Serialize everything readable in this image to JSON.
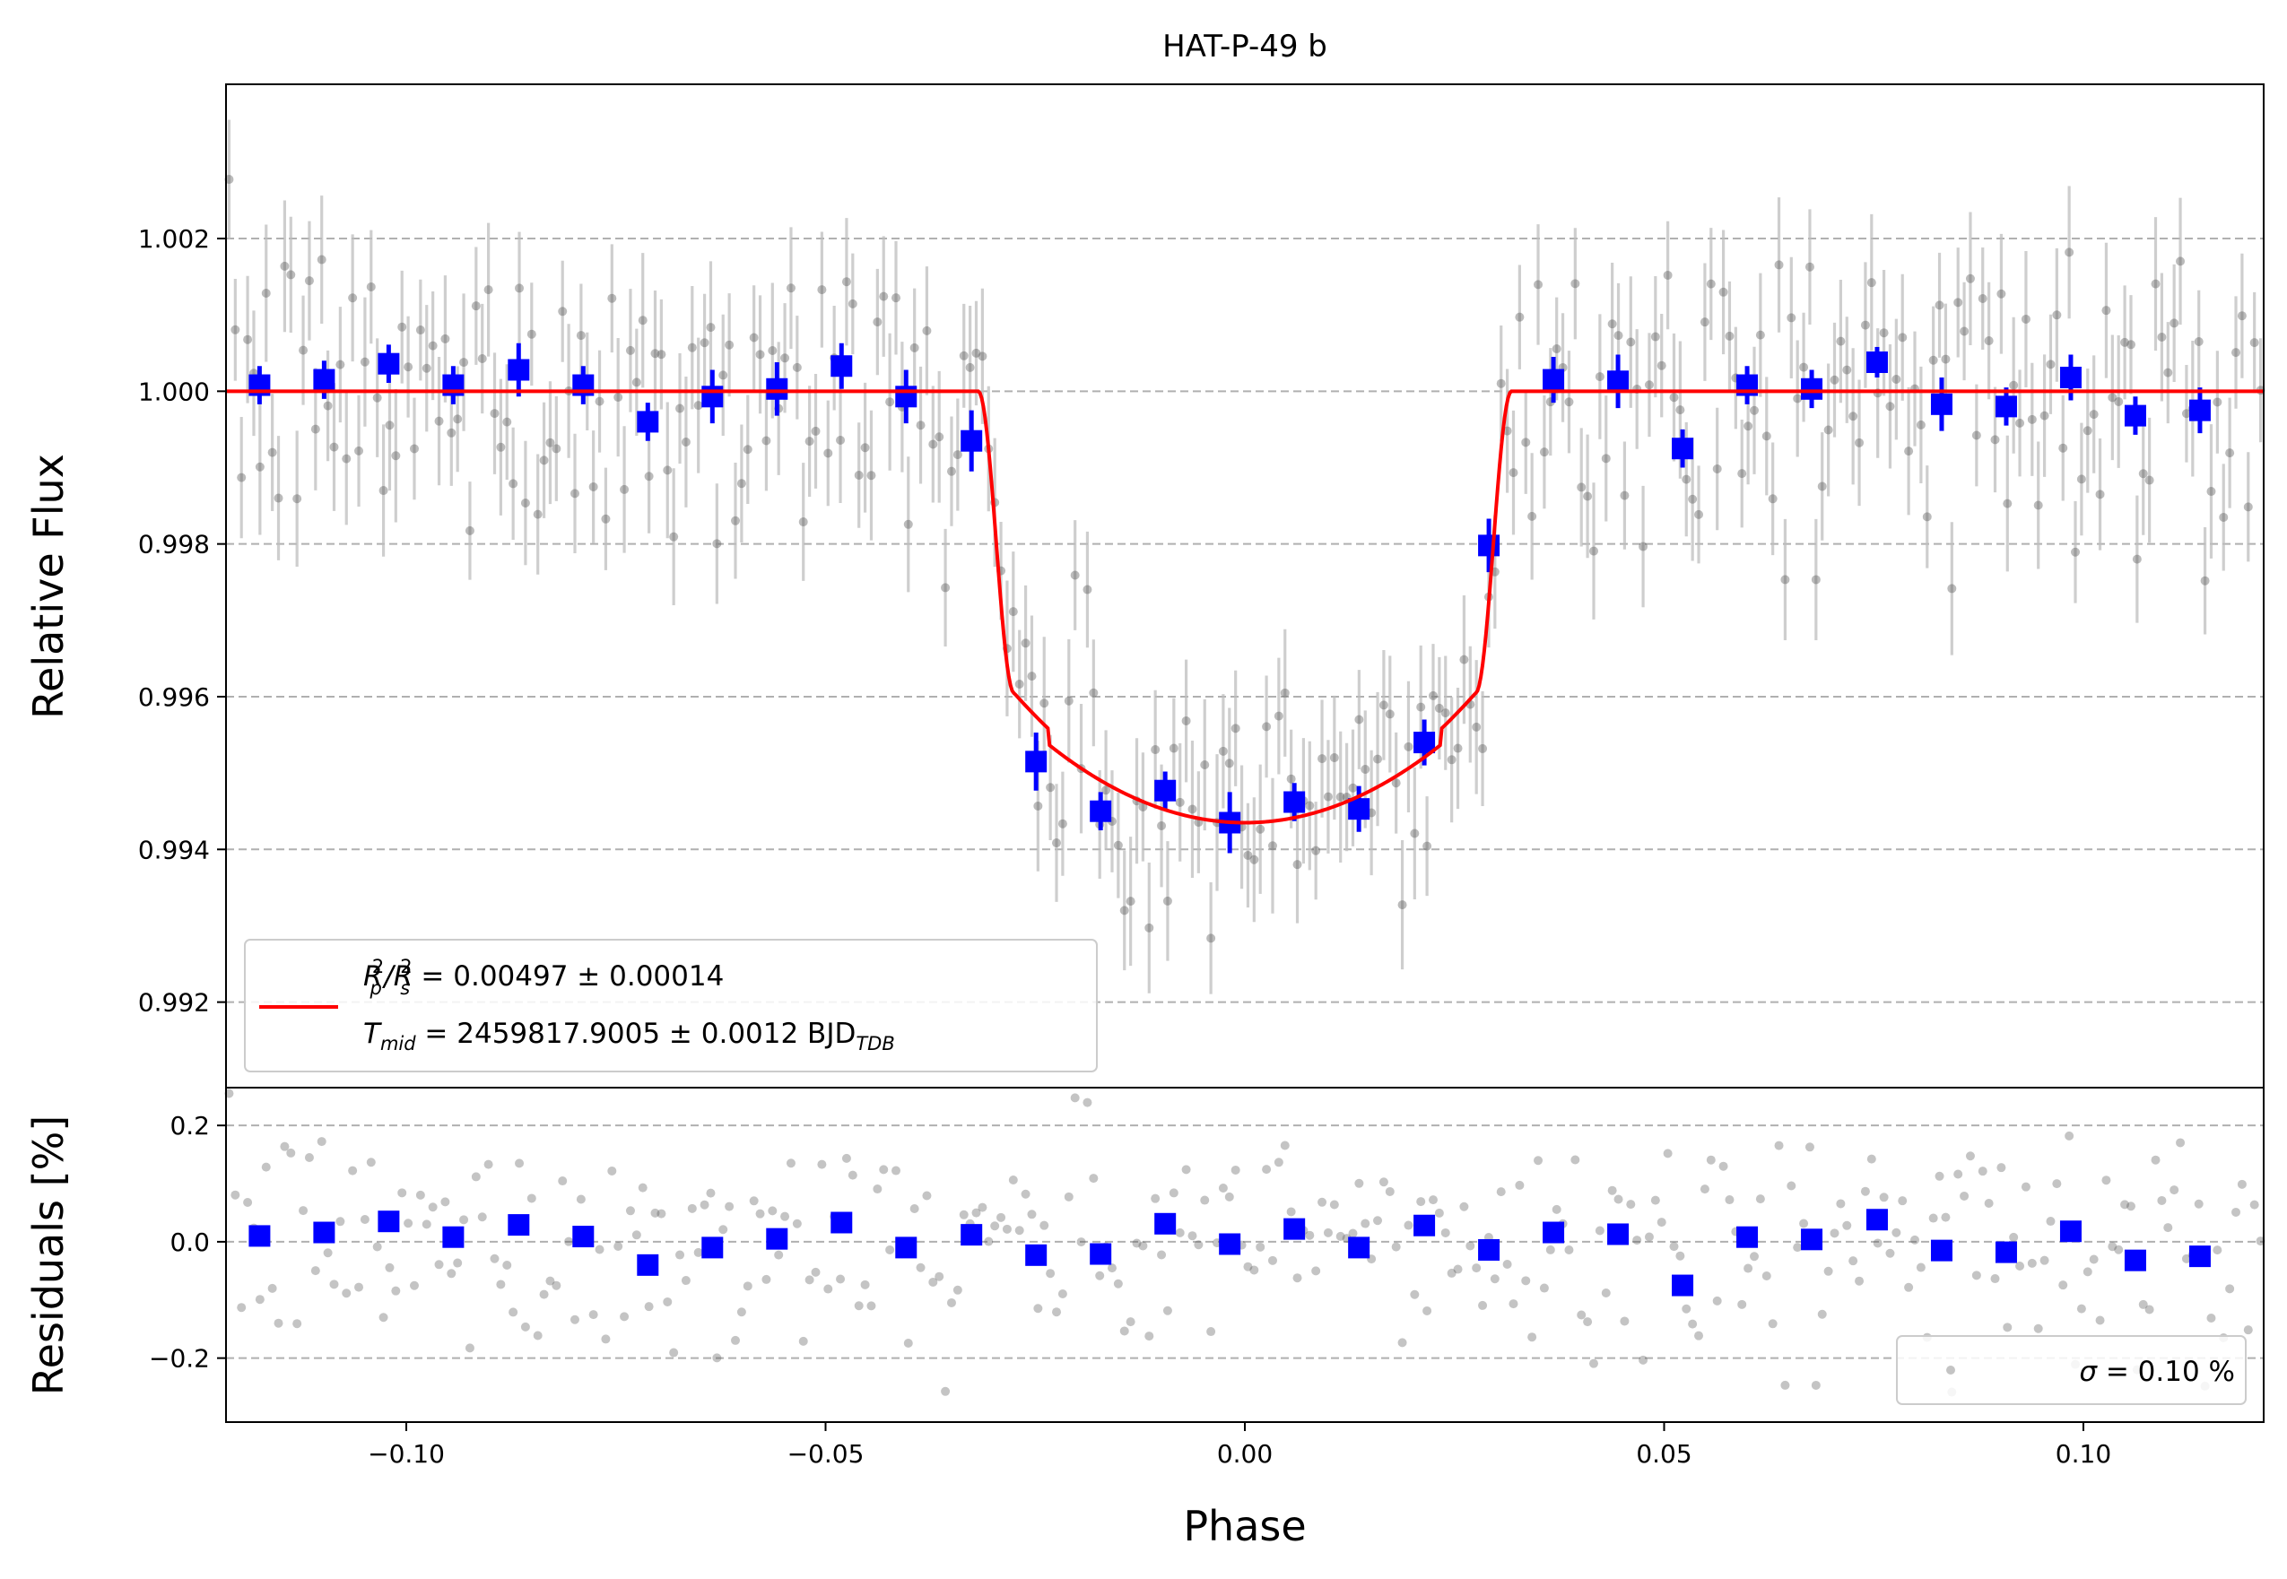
{
  "chart_data": [
    {
      "type": "scatter",
      "title": "HAT-P-49 b",
      "xlabel": "Phase",
      "ylabel": "Relative Flux",
      "xlim": [
        -0.1215,
        0.1215
      ],
      "ylim": [
        0.99088,
        1.00402
      ],
      "yticks": [
        0.992,
        0.994,
        0.996,
        0.998,
        1.0,
        1.002
      ],
      "ytick_labels": [
        "0.992",
        "0.994",
        "0.996",
        "0.998",
        "1.000",
        "1.002"
      ],
      "grid": "horizontal dashed",
      "legend": {
        "placement": "lower-left",
        "line1_parts": [
          "R",
          "p",
          "2",
          "/R",
          "s",
          "2",
          " = 0.00497 ± 0.00014"
        ],
        "line2_parts": [
          "T",
          "mid",
          " = 2459817.9005 ± 0.0012 BJD",
          "TDB"
        ]
      },
      "model_line": {
        "color": "#ff0000",
        "depth": 0.00565,
        "t_contact_1": -0.0318,
        "t_contact_2": -0.0275,
        "t_contact_3": 0.0275,
        "t_contact_4": 0.0318
      },
      "binned_series": {
        "color": "#0000ff",
        "x": [
          -0.1175,
          -0.1098,
          -0.1021,
          -0.0944,
          -0.0866,
          -0.0789,
          -0.0712,
          -0.0635,
          -0.0558,
          -0.0481,
          -0.0404,
          -0.0326,
          -0.0249,
          -0.0172,
          -0.0095,
          -0.0018,
          0.0059,
          0.0136,
          0.0214,
          0.0291,
          0.0368,
          0.0445,
          0.0522,
          0.0599,
          0.0676,
          0.0754,
          0.0831,
          0.0908,
          0.0985,
          0.1062,
          0.1139
        ],
        "y": [
          1.00008,
          1.00015,
          1.00036,
          1.00008,
          1.00028,
          1.00008,
          0.9996,
          0.99993,
          1.00003,
          1.00033,
          0.99993,
          0.99935,
          0.99515,
          0.9945,
          0.99477,
          0.99435,
          0.99462,
          0.99453,
          0.9954,
          0.99798,
          1.00015,
          1.00013,
          0.99925,
          1.00008,
          1.00003,
          1.00038,
          0.99983,
          0.9998,
          1.00018,
          0.99968,
          0.99975
        ],
        "err": [
          0.00025,
          0.00025,
          0.00025,
          0.00025,
          0.00035,
          0.00025,
          0.00025,
          0.00035,
          0.00035,
          0.0003,
          0.00035,
          0.0004,
          0.00038,
          0.00025,
          0.00025,
          0.0004,
          0.00025,
          0.0003,
          0.0003,
          0.00035,
          0.0003,
          0.00035,
          0.00025,
          0.00025,
          0.00025,
          0.0002,
          0.00035,
          0.00025,
          0.0003,
          0.00025,
          0.0003
        ]
      },
      "raw_series": {
        "color": "#555555",
        "count": 330,
        "typical_error": 0.00075,
        "scatter_sigma": 0.001
      }
    },
    {
      "type": "scatter",
      "xlabel": "Phase",
      "ylabel": "Residuals [%]",
      "xlim": [
        -0.1215,
        0.1215
      ],
      "ylim": [
        -0.31,
        0.265
      ],
      "xticks": [
        -0.1,
        -0.05,
        0.0,
        0.05,
        0.1
      ],
      "xtick_labels": [
        "−0.10",
        "−0.05",
        "0.00",
        "0.05",
        "0.10"
      ],
      "yticks": [
        -0.2,
        0.0,
        0.2
      ],
      "ytick_labels": [
        "−0.2",
        "0.0",
        "0.2"
      ],
      "grid": "horizontal dashed",
      "legend": {
        "placement": "lower-right",
        "parts": [
          "σ",
          " = 0.10 %"
        ]
      },
      "binned_series": {
        "color": "#0000ff",
        "x": [
          -0.1175,
          -0.1098,
          -0.1021,
          -0.0944,
          -0.0866,
          -0.0789,
          -0.0712,
          -0.0635,
          -0.0558,
          -0.0481,
          -0.0404,
          -0.0326,
          -0.0249,
          -0.0172,
          -0.0095,
          -0.0018,
          0.0059,
          0.0136,
          0.0214,
          0.0291,
          0.0368,
          0.0445,
          0.0522,
          0.0599,
          0.0676,
          0.0754,
          0.0831,
          0.0908,
          0.0985,
          0.1062,
          0.1139
        ],
        "y": [
          0.01,
          0.016,
          0.035,
          0.008,
          0.029,
          0.009,
          -0.04,
          -0.01,
          0.005,
          0.033,
          -0.01,
          0.012,
          -0.023,
          -0.021,
          0.031,
          -0.004,
          0.022,
          -0.01,
          0.028,
          -0.014,
          0.016,
          0.013,
          -0.075,
          0.008,
          0.004,
          0.038,
          -0.015,
          -0.018,
          0.018,
          -0.032,
          -0.025
        ]
      },
      "raw_series": {
        "color": "#555555",
        "count": 330,
        "scatter_sigma": 0.1
      }
    }
  ]
}
